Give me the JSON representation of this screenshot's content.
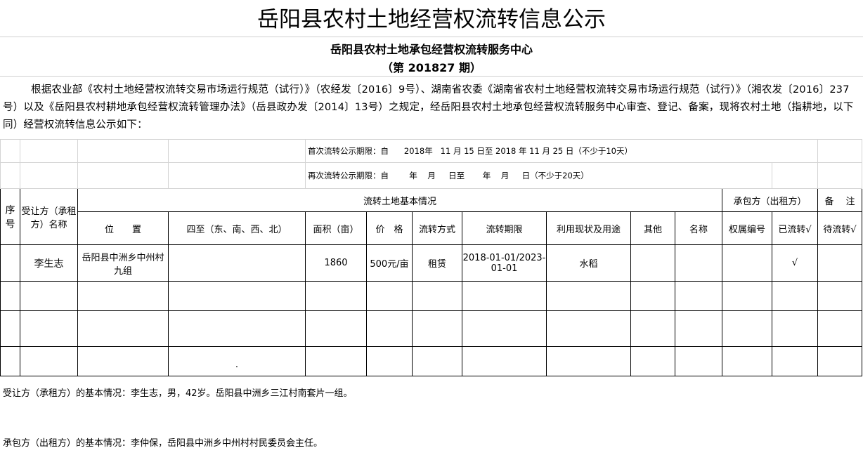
{
  "title": "岳阳县农村土地经营权流转信息公示",
  "subtitle": "岳阳县农村土地承包经营权流转服务中心",
  "period": "（第 201827 期）",
  "intro": "根据农业部《农村土地经营权流转交易市场运行规范（试行）》（农经发〔2016〕9号）、湖南省农委《湖南省农村土地经营权流转交易市场运行规范（试行）》（湘农发〔2016〕237号）以及《岳阳县农村耕地承包经营权流转管理办法》（岳县政办发〔2014〕13号）之规定，经岳阳县农村土地承包经营权流转服务中心审查、登记、备案，现将农村土地（指耕地，以下同）经营权流转信息公示如下：",
  "notice1": "首次流转公示期限：自      2018年   11 月 15 日至 2018 年 11 月 25 日（不少于10天）",
  "notice2": "再次流转公示期限：自        年    月     日至       年    月     日（不少于20天）",
  "headers": {
    "seq": "序号",
    "transferee": "受让方（承租方）名称",
    "land": "流转土地基本情况",
    "contractor": "承包方（出租方）",
    "remark": "备　 注",
    "location": "位　　置",
    "bounds": "四至（东、南、西、北）",
    "area": "面积（亩）",
    "price": "价　格",
    "method": "流转方式",
    "term": "流转期限",
    "usage": "利用现状及用途",
    "other": "其他",
    "name": "名称",
    "ownership": "权属编号",
    "done": "已流转√",
    "pending": "待流转√"
  },
  "rows": [
    {
      "seq": "",
      "transferee": "李生志",
      "location": "岳阳县中洲乡中州村九组",
      "bounds": "",
      "area": "1860",
      "price": "500元/亩",
      "method": "租赁",
      "term": "2018-01-01/2023-01-01",
      "usage": "水稻",
      "other": "",
      "name": "",
      "ownership": "",
      "done": "√",
      "pending": ""
    }
  ],
  "blank_row_mark": ".",
  "footer1": "受让方（承租方）的基本情况：李生志，男，42岁。岳阳县中洲乡三江村南套片一组。",
  "footer2": "承包方（出租方）的基本情况：李仲保，岳阳县中洲乡中州村村民委员会主任。"
}
